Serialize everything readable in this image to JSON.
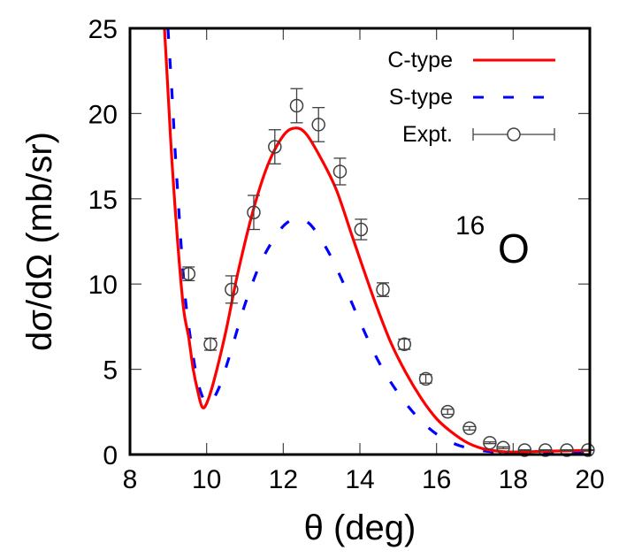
{
  "chart_data": {
    "type": "line",
    "title": "",
    "xlabel": "θ (deg)",
    "ylabel": "dσ/dΩ (mb/sr)",
    "xlim": [
      8,
      20
    ],
    "ylim": [
      0,
      25
    ],
    "xticks": [
      8,
      10,
      12,
      14,
      16,
      18,
      20
    ],
    "yticks": [
      0,
      5,
      10,
      15,
      20,
      25
    ],
    "grid": false,
    "legend_position": "top-right",
    "annotation": {
      "superscript": "16",
      "text": "O"
    },
    "series": [
      {
        "name": "C-type",
        "style": "solid",
        "color": "#ff0000",
        "x": [
          8.9,
          9.0,
          9.1,
          9.26,
          9.4,
          9.53,
          9.65,
          9.76,
          9.88,
          10.0,
          10.2,
          10.5,
          10.8,
          11.2,
          11.6,
          12.0,
          12.31,
          12.6,
          13.0,
          13.39,
          13.8,
          14.37,
          14.8,
          15.2,
          15.6,
          16.0,
          16.4,
          16.8,
          17.2,
          17.6,
          18.0,
          19.0,
          20.0
        ],
        "y": [
          25,
          21,
          17,
          12,
          8.5,
          6.9,
          5.0,
          3.8,
          2.8,
          3.0,
          4.4,
          7.2,
          10.5,
          14.2,
          17.0,
          18.7,
          19.15,
          18.8,
          17.3,
          15.5,
          12.8,
          9.1,
          6.6,
          4.8,
          3.3,
          2.1,
          1.3,
          0.7,
          0.35,
          0.2,
          0.15,
          0.2,
          0.25
        ]
      },
      {
        "name": "S-type",
        "style": "dashed",
        "color": "#0000ff",
        "x": [
          8.99,
          9.1,
          9.2,
          9.41,
          9.6,
          9.8,
          10.03,
          10.3,
          10.6,
          11.0,
          11.4,
          11.8,
          12.1,
          12.39,
          12.7,
          13.1,
          13.5,
          14.0,
          14.5,
          15.0,
          15.5,
          16.0,
          16.5,
          17.0,
          17.5,
          18.0,
          19.0,
          20.0
        ],
        "y": [
          25,
          21,
          17,
          10,
          6.5,
          4.0,
          3.0,
          3.8,
          5.8,
          8.8,
          11.2,
          12.8,
          13.6,
          13.78,
          13.5,
          12.2,
          10.4,
          7.8,
          5.4,
          3.6,
          2.2,
          1.2,
          0.6,
          0.3,
          0.15,
          0.1,
          0.1,
          0.1
        ]
      },
      {
        "name": "Expt.",
        "style": "points-errorbars",
        "color": "#404040",
        "x": [
          9.53,
          10.1,
          10.65,
          11.23,
          11.78,
          12.35,
          12.92,
          13.48,
          14.03,
          14.6,
          15.16,
          15.72,
          16.29,
          16.86,
          17.39,
          17.74,
          18.3,
          18.84,
          19.4,
          19.95
        ],
        "y": [
          10.6,
          6.47,
          9.68,
          14.2,
          18.05,
          20.46,
          19.35,
          16.6,
          13.2,
          9.67,
          6.47,
          4.44,
          2.51,
          1.54,
          0.69,
          0.4,
          0.26,
          0.26,
          0.26,
          0.26
        ],
        "yerr": [
          0.4,
          0.35,
          0.8,
          1.0,
          1.0,
          1.0,
          1.0,
          0.78,
          0.6,
          0.4,
          0.3,
          0.25,
          0.15,
          0.1,
          0.05,
          0.05,
          0.02,
          0.02,
          0.02,
          0.02
        ]
      }
    ]
  }
}
